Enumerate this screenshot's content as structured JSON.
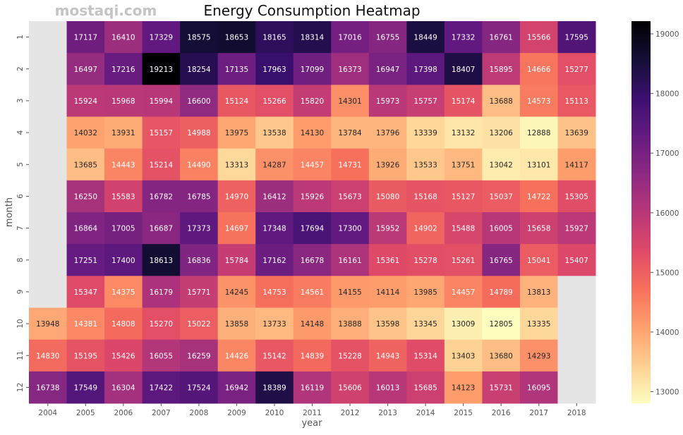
{
  "chart_data": {
    "type": "heatmap",
    "title": "Energy Consumption Heatmap",
    "xlabel": "year",
    "ylabel": "month",
    "x": [
      "2004",
      "2005",
      "2006",
      "2007",
      "2008",
      "2009",
      "2010",
      "2011",
      "2012",
      "2013",
      "2014",
      "2015",
      "2016",
      "2017",
      "2018"
    ],
    "y": [
      "1",
      "2",
      "3",
      "4",
      "5",
      "6",
      "7",
      "8",
      "9",
      "10",
      "11",
      "12"
    ],
    "values": [
      [
        null,
        17117,
        16410,
        17329,
        18575,
        18653,
        18165,
        18314,
        17016,
        16755,
        18449,
        17332,
        16761,
        15566,
        17595
      ],
      [
        null,
        16497,
        17216,
        19213,
        18254,
        17135,
        17963,
        17099,
        16373,
        16947,
        17398,
        18407,
        15895,
        14666,
        15277
      ],
      [
        null,
        15924,
        15968,
        15994,
        16600,
        15124,
        15266,
        15820,
        14301,
        15973,
        15757,
        15174,
        13688,
        14573,
        15113
      ],
      [
        null,
        14032,
        13931,
        15157,
        14988,
        13975,
        13538,
        14130,
        13784,
        13796,
        13339,
        13132,
        13206,
        12888,
        13639
      ],
      [
        null,
        13685,
        14443,
        15214,
        14490,
        13313,
        14287,
        14457,
        14731,
        13926,
        13533,
        13751,
        13042,
        13101,
        14117
      ],
      [
        null,
        16250,
        15583,
        16782,
        16785,
        14970,
        16412,
        15926,
        15673,
        15080,
        15168,
        15127,
        15037,
        14722,
        15305
      ],
      [
        null,
        16864,
        17005,
        16687,
        17373,
        14697,
        17348,
        17694,
        17300,
        15952,
        14902,
        15488,
        16005,
        15658,
        15927
      ],
      [
        null,
        17251,
        17400,
        18613,
        16836,
        15784,
        17162,
        16678,
        16161,
        15361,
        15278,
        15261,
        16765,
        15041,
        15407
      ],
      [
        null,
        15347,
        14375,
        16179,
        15771,
        14245,
        14753,
        14561,
        14155,
        14114,
        13985,
        14457,
        14789,
        13813,
        null
      ],
      [
        13948,
        14381,
        14808,
        15270,
        15022,
        13858,
        13733,
        14148,
        13888,
        13598,
        13345,
        13009,
        12805,
        13335,
        null
      ],
      [
        14830,
        15195,
        15426,
        16055,
        16259,
        14426,
        15142,
        14839,
        15228,
        14943,
        15314,
        13403,
        13680,
        14293,
        null
      ],
      [
        16738,
        17549,
        16304,
        17422,
        17524,
        16942,
        18389,
        16119,
        15606,
        16013,
        15685,
        14123,
        15731,
        16095,
        null
      ]
    ],
    "colormap": "magma_r",
    "missing_color": "#e5e5e5",
    "vmin": 12805,
    "vmax": 19213,
    "colorbar": {
      "ticks": [
        "13000",
        "14000",
        "15000",
        "16000",
        "17000",
        "18000",
        "19000"
      ]
    },
    "annotations": true,
    "legend": "colorbar-right"
  },
  "watermark": "mostaqi.com"
}
